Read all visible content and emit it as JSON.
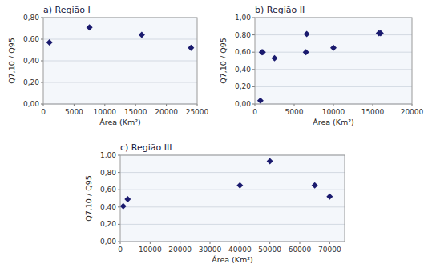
{
  "chart_data": [
    {
      "type": "scatter",
      "title": "a) Região I",
      "x": [
        1000,
        7500,
        16000,
        24000
      ],
      "values": [
        0.57,
        0.71,
        0.64,
        0.52
      ],
      "xlim": [
        0,
        25000
      ],
      "ylim": [
        0.0,
        0.8
      ],
      "xticks": [
        0,
        5000,
        10000,
        15000,
        20000,
        25000
      ],
      "yticks": [
        {
          "value": 0.0,
          "label": "0,00"
        },
        {
          "value": 0.2,
          "label": "0,20"
        },
        {
          "value": 0.4,
          "label": "0,40"
        },
        {
          "value": 0.6,
          "label": "0,60"
        },
        {
          "value": 0.8,
          "label": "0,80"
        }
      ],
      "xlabel": "Área (Km²)",
      "ylabel": "Q7,10 / Q95",
      "color": "#1a1a6e",
      "marker": "diamond",
      "grid": true
    },
    {
      "type": "scatter",
      "title": "b) Região II",
      "x": [
        700,
        900,
        1000,
        2500,
        6500,
        6600,
        10000,
        15800,
        16000
      ],
      "values": [
        0.04,
        0.6,
        0.6,
        0.53,
        0.6,
        0.81,
        0.65,
        0.82,
        0.82
      ],
      "xlim": [
        0,
        20000
      ],
      "ylim": [
        0.0,
        1.0
      ],
      "xticks": [
        0,
        5000,
        10000,
        15000,
        20000
      ],
      "yticks": [
        {
          "value": 0.0,
          "label": "0,00"
        },
        {
          "value": 0.2,
          "label": "0,20"
        },
        {
          "value": 0.4,
          "label": "0,40"
        },
        {
          "value": 0.6,
          "label": "0,60"
        },
        {
          "value": 0.8,
          "label": "0,80"
        },
        {
          "value": 1.0,
          "label": "1,00"
        }
      ],
      "xlabel": "Área (Km²)",
      "ylabel": "Q7,10 / Q95",
      "color": "#1a1a6e",
      "marker": "diamond",
      "grid": true
    },
    {
      "type": "scatter",
      "title": "c) Região III",
      "x": [
        1000,
        2500,
        40000,
        50000,
        65000,
        70000
      ],
      "values": [
        0.41,
        0.49,
        0.65,
        0.93,
        0.65,
        0.52
      ],
      "xlim": [
        0,
        75000
      ],
      "ylim": [
        0.0,
        1.0
      ],
      "xticks": [
        0,
        10000,
        20000,
        30000,
        40000,
        50000,
        60000,
        70000
      ],
      "yticks": [
        {
          "value": 0.0,
          "label": "0,00"
        },
        {
          "value": 0.2,
          "label": "0,20"
        },
        {
          "value": 0.4,
          "label": "0,40"
        },
        {
          "value": 0.6,
          "label": "0,60"
        },
        {
          "value": 0.8,
          "label": "0,80"
        },
        {
          "value": 1.0,
          "label": "1,00"
        }
      ],
      "xlabel": "Área (Km²)",
      "ylabel": "Q7,10 / Q95",
      "color": "#1a1a6e",
      "marker": "diamond",
      "grid": true
    }
  ]
}
